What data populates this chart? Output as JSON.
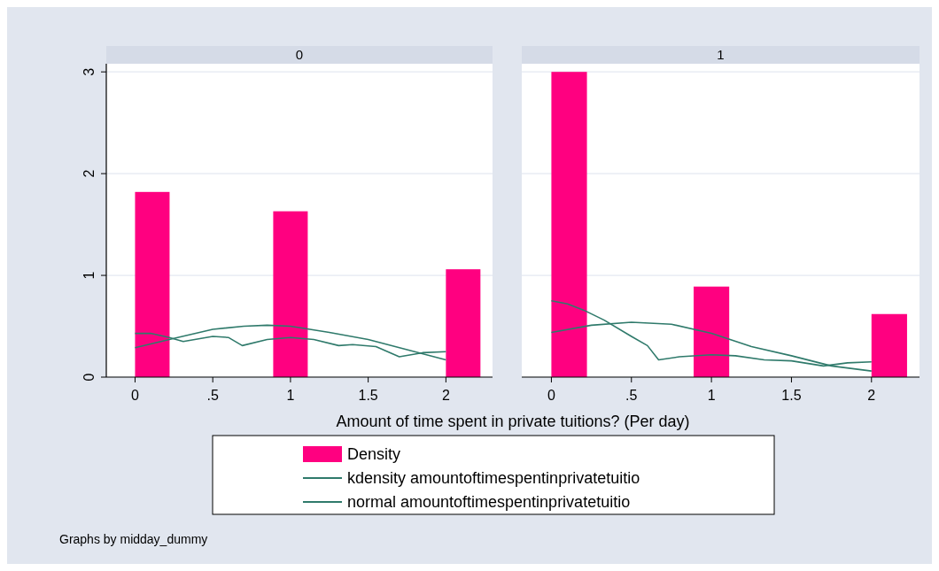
{
  "chart_data": [
    {
      "type": "histogram",
      "title": "0",
      "xlabel": "Amount of time spent in private tuitions? (Per day)",
      "bins": [
        0,
        0.2222,
        0.4444,
        0.6667,
        0.8889,
        1.1111,
        1.3333,
        1.5556,
        1.7778,
        2,
        2.2222
      ],
      "xlim": [
        -0.185,
        2.3
      ],
      "ylim": [
        0,
        3.08
      ],
      "xticks": [
        0,
        {
          "value": 0.5,
          "label": ".5"
        },
        1,
        1.5,
        2
      ],
      "yticks": [
        0,
        1,
        2,
        3
      ],
      "grid": "y",
      "legend": "bottom",
      "series": [
        {
          "type": "histogram",
          "name": "Density",
          "color": "#ff0080",
          "values": [
            1.82,
            0,
            0,
            0,
            1.63,
            0,
            0,
            0,
            0,
            1.06
          ]
        },
        {
          "type": "line",
          "name": "kdensity amountoftimespentinprivatetuitio",
          "color": "#2f7a6b",
          "x": [
            0,
            0.1,
            0.22,
            0.31,
            0.5,
            0.6,
            0.69,
            0.85,
            1,
            1.15,
            1.31,
            1.4,
            1.55,
            1.7,
            1.85,
            2
          ],
          "values": [
            0.43,
            0.43,
            0.39,
            0.35,
            0.4,
            0.39,
            0.31,
            0.37,
            0.39,
            0.37,
            0.31,
            0.32,
            0.3,
            0.2,
            0.24,
            0.25
          ]
        },
        {
          "type": "line",
          "name": "normal amountoftimespentinprivatetuitio",
          "color": "#2f7a6b",
          "x": [
            0,
            0.25,
            0.5,
            0.7,
            0.85,
            1,
            1.25,
            1.5,
            1.75,
            2
          ],
          "values": [
            0.29,
            0.38,
            0.47,
            0.5,
            0.51,
            0.5,
            0.44,
            0.37,
            0.27,
            0.17
          ]
        }
      ]
    },
    {
      "type": "histogram",
      "title": "1",
      "bins": [
        0,
        0.2222,
        0.4444,
        0.6667,
        0.8889,
        1.1111,
        1.3333,
        1.5556,
        1.7778,
        2,
        2.2222
      ],
      "xlim": [
        -0.185,
        2.3
      ],
      "ylim": [
        0,
        3.08
      ],
      "xticks": [
        0,
        {
          "value": 0.5,
          "label": ".5"
        },
        1,
        1.5,
        2
      ],
      "yticks": [
        0,
        1,
        2,
        3
      ],
      "tick_labels": "x",
      "grid": "y",
      "annotations": [
        "Graphs by midday_dummy"
      ],
      "series": [
        {
          "type": "histogram",
          "color": "#ff0080",
          "values": [
            3.0,
            0,
            0,
            0,
            0.89,
            0,
            0,
            0,
            0,
            0.62
          ]
        },
        {
          "type": "line",
          "color": "#2f7a6b",
          "x": [
            0,
            0.1,
            0.2,
            0.33,
            0.5,
            0.6,
            0.67,
            0.8,
            1,
            1.15,
            1.33,
            1.5,
            1.7,
            1.85,
            2
          ],
          "values": [
            0.75,
            0.72,
            0.66,
            0.56,
            0.4,
            0.31,
            0.17,
            0.2,
            0.22,
            0.21,
            0.17,
            0.16,
            0.11,
            0.14,
            0.15
          ]
        },
        {
          "type": "line",
          "color": "#2f7a6b",
          "x": [
            0,
            0.25,
            0.5,
            0.75,
            1,
            1.25,
            1.5,
            1.75,
            2
          ],
          "values": [
            0.44,
            0.51,
            0.54,
            0.52,
            0.43,
            0.3,
            0.21,
            0.11,
            0.06
          ]
        }
      ]
    }
  ]
}
